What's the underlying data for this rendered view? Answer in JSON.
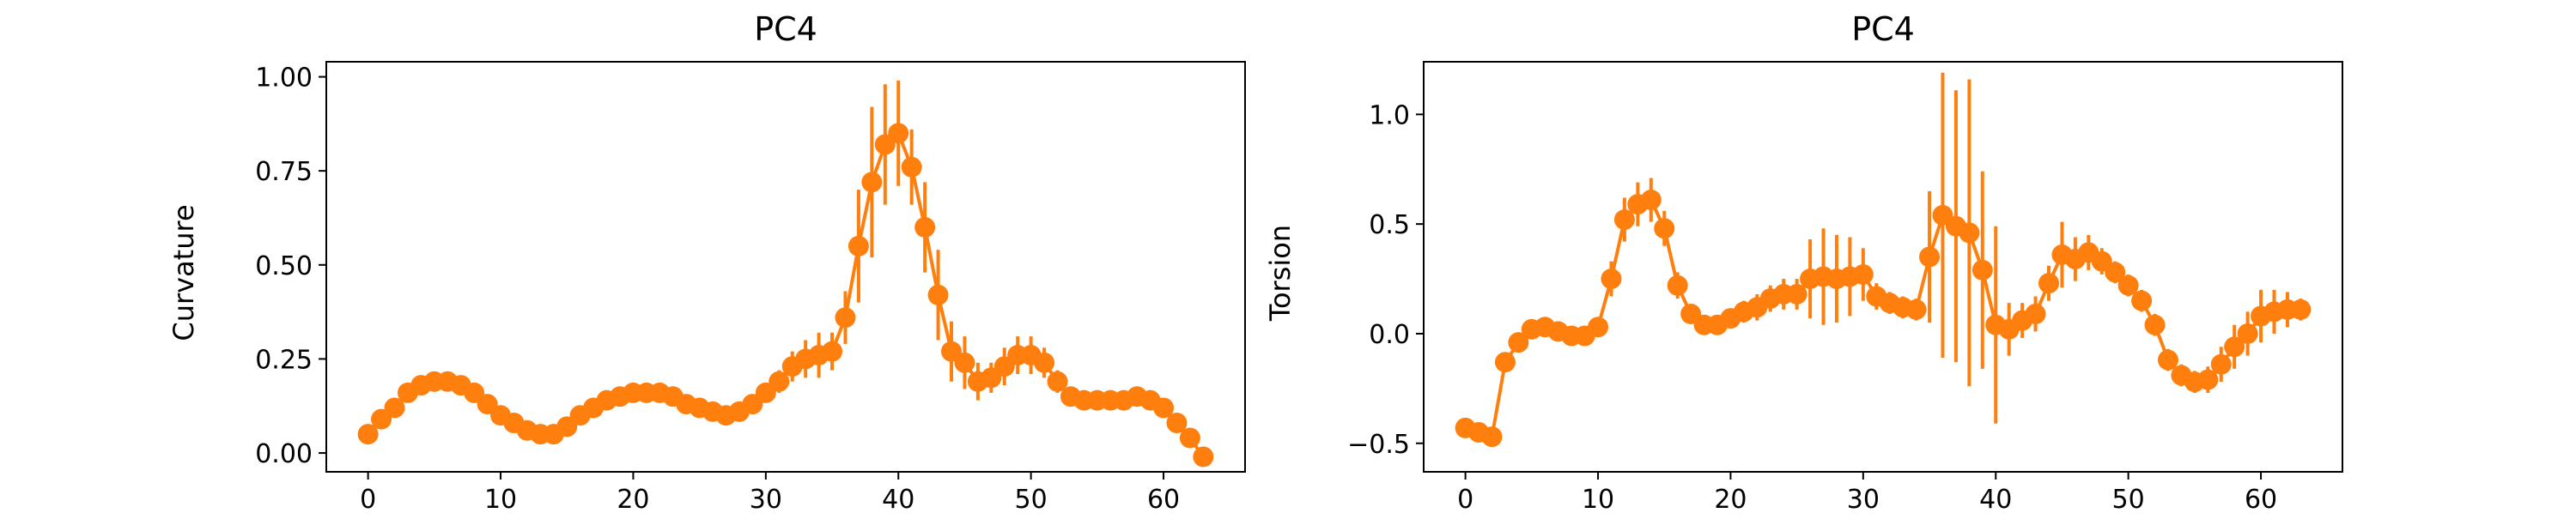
{
  "chart_data": [
    {
      "type": "line",
      "title": "PC4",
      "xlabel": "",
      "ylabel": "Curvature",
      "xlim": [
        -3.15,
        66.15
      ],
      "ylim": [
        -0.05,
        1.04
      ],
      "xticks": [
        0,
        10,
        20,
        30,
        40,
        50,
        60
      ],
      "yticks": [
        0.0,
        0.25,
        0.5,
        0.75,
        1.0
      ],
      "ytick_labels": [
        "0.00",
        "0.25",
        "0.50",
        "0.75",
        "1.00"
      ],
      "color": "#ff7f0e",
      "grid": false,
      "x": [
        0,
        1,
        2,
        3,
        4,
        5,
        6,
        7,
        8,
        9,
        10,
        11,
        12,
        13,
        14,
        15,
        16,
        17,
        18,
        19,
        20,
        21,
        22,
        23,
        24,
        25,
        26,
        27,
        28,
        29,
        30,
        31,
        32,
        33,
        34,
        35,
        36,
        37,
        38,
        39,
        40,
        41,
        42,
        43,
        44,
        45,
        46,
        47,
        48,
        49,
        50,
        51,
        52,
        53,
        54,
        55,
        56,
        57,
        58,
        59,
        60,
        61,
        62,
        63
      ],
      "y": [
        0.05,
        0.09,
        0.12,
        0.16,
        0.18,
        0.19,
        0.19,
        0.18,
        0.16,
        0.13,
        0.1,
        0.08,
        0.06,
        0.05,
        0.05,
        0.07,
        0.1,
        0.12,
        0.14,
        0.15,
        0.16,
        0.16,
        0.16,
        0.15,
        0.13,
        0.12,
        0.11,
        0.1,
        0.11,
        0.13,
        0.16,
        0.19,
        0.23,
        0.25,
        0.26,
        0.27,
        0.36,
        0.55,
        0.72,
        0.82,
        0.85,
        0.76,
        0.6,
        0.42,
        0.27,
        0.24,
        0.19,
        0.2,
        0.23,
        0.26,
        0.26,
        0.24,
        0.19,
        0.15,
        0.14,
        0.14,
        0.14,
        0.14,
        0.15,
        0.14,
        0.12,
        0.08,
        0.04,
        -0.01
      ],
      "yerr": [
        0.01,
        0.01,
        0.01,
        0.01,
        0.01,
        0.01,
        0.01,
        0.01,
        0.01,
        0.01,
        0.01,
        0.01,
        0.01,
        0.01,
        0.01,
        0.01,
        0.01,
        0.01,
        0.01,
        0.01,
        0.01,
        0.01,
        0.01,
        0.01,
        0.01,
        0.01,
        0.01,
        0.01,
        0.01,
        0.02,
        0.02,
        0.03,
        0.04,
        0.05,
        0.06,
        0.05,
        0.07,
        0.15,
        0.2,
        0.16,
        0.14,
        0.1,
        0.12,
        0.12,
        0.08,
        0.07,
        0.05,
        0.04,
        0.05,
        0.05,
        0.05,
        0.04,
        0.03,
        0.02,
        0.02,
        0.02,
        0.02,
        0.02,
        0.02,
        0.02,
        0.02,
        0.02,
        0.02,
        0.01
      ]
    },
    {
      "type": "line",
      "title": "PC4",
      "xlabel": "",
      "ylabel": "Torsion",
      "xlim": [
        -3.15,
        66.15
      ],
      "ylim": [
        -0.63,
        1.24
      ],
      "xticks": [
        0,
        10,
        20,
        30,
        40,
        50,
        60
      ],
      "yticks": [
        -0.5,
        0.0,
        0.5,
        1.0
      ],
      "ytick_labels": [
        "−0.5",
        "0.0",
        "0.5",
        "1.0"
      ],
      "color": "#ff7f0e",
      "grid": false,
      "x": [
        0,
        1,
        2,
        3,
        4,
        5,
        6,
        7,
        8,
        9,
        10,
        11,
        12,
        13,
        14,
        15,
        16,
        17,
        18,
        19,
        20,
        21,
        22,
        23,
        24,
        25,
        26,
        27,
        28,
        29,
        30,
        31,
        32,
        33,
        34,
        35,
        36,
        37,
        38,
        39,
        40,
        41,
        42,
        43,
        44,
        45,
        46,
        47,
        48,
        49,
        50,
        51,
        52,
        53,
        54,
        55,
        56,
        57,
        58,
        59,
        60,
        61,
        62,
        63
      ],
      "y": [
        -0.43,
        -0.45,
        -0.47,
        -0.13,
        -0.04,
        0.02,
        0.03,
        0.01,
        -0.01,
        -0.01,
        0.03,
        0.25,
        0.52,
        0.59,
        0.61,
        0.48,
        0.22,
        0.09,
        0.04,
        0.04,
        0.07,
        0.1,
        0.12,
        0.16,
        0.18,
        0.18,
        0.25,
        0.26,
        0.25,
        0.26,
        0.27,
        0.17,
        0.14,
        0.12,
        0.11,
        0.35,
        0.54,
        0.49,
        0.46,
        0.29,
        0.04,
        0.02,
        0.06,
        0.09,
        0.23,
        0.36,
        0.34,
        0.37,
        0.33,
        0.28,
        0.22,
        0.15,
        0.04,
        -0.12,
        -0.19,
        -0.22,
        -0.21,
        -0.14,
        -0.06,
        0.0,
        0.08,
        0.1,
        0.11,
        0.11
      ],
      "yerr": [
        0.04,
        0.04,
        0.04,
        0.04,
        0.03,
        0.02,
        0.02,
        0.02,
        0.02,
        0.02,
        0.03,
        0.08,
        0.1,
        0.1,
        0.1,
        0.08,
        0.06,
        0.04,
        0.03,
        0.03,
        0.04,
        0.05,
        0.06,
        0.06,
        0.07,
        0.07,
        0.18,
        0.22,
        0.2,
        0.18,
        0.12,
        0.06,
        0.05,
        0.05,
        0.05,
        0.3,
        0.65,
        0.62,
        0.7,
        0.45,
        0.45,
        0.12,
        0.08,
        0.08,
        0.08,
        0.15,
        0.1,
        0.08,
        0.06,
        0.05,
        0.05,
        0.05,
        0.05,
        0.05,
        0.05,
        0.05,
        0.06,
        0.08,
        0.1,
        0.1,
        0.12,
        0.1,
        0.08,
        0.05
      ]
    }
  ]
}
